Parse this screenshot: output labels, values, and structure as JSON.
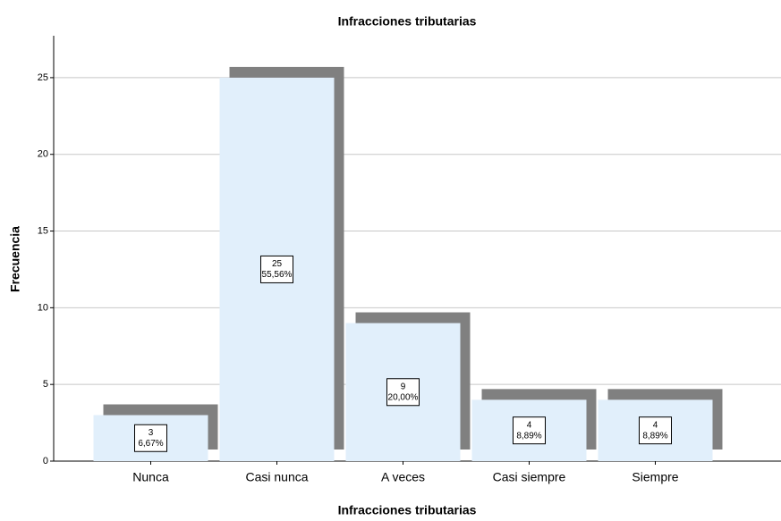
{
  "chart_data": {
    "type": "bar",
    "title": "Infracciones tributarias",
    "x_label": "Infracciones tributarias",
    "y_label": "Frecuencia",
    "categories": [
      "Nunca",
      "Casi nunca",
      "A veces",
      "Casi siempre",
      "Siempre"
    ],
    "values": [
      3,
      25,
      9,
      4,
      4
    ],
    "percent_labels": [
      "6,67%",
      "55,56%",
      "20,00%",
      "8,89%",
      "8,89%"
    ],
    "color": "#e1effb",
    "shadow_color": "#808080",
    "ylim": [
      0,
      27.5
    ],
    "yticks": [
      0,
      5,
      10,
      15,
      20,
      25
    ],
    "grid": true
  }
}
